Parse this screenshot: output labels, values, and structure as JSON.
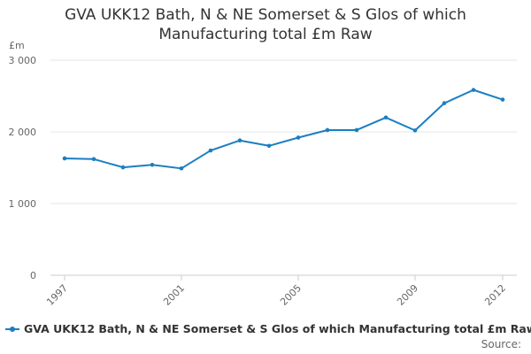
{
  "chart_data": {
    "type": "line",
    "title_line1": "GVA UKK12 Bath, N & NE Somerset & S Glos of which",
    "title_line2": "Manufacturing total £m Raw",
    "ylabel": "£m",
    "ylim": [
      0,
      3000
    ],
    "yticks": [
      0,
      1000,
      2000,
      3000
    ],
    "ytick_labels": [
      "0",
      "1 000",
      "2 000",
      "3 000"
    ],
    "x": [
      1997,
      1998,
      1999,
      2000,
      2001,
      2002,
      2003,
      2004,
      2005,
      2006,
      2007,
      2008,
      2009,
      2010,
      2011,
      2012
    ],
    "xtick_labels": [
      "1997",
      "2001",
      "2005",
      "2009",
      "2012"
    ],
    "xtick_values": [
      1997,
      2001,
      2005,
      2009,
      2012
    ],
    "series": [
      {
        "name": "GVA UKK12 Bath, N & NE Somerset & S Glos of which Manufacturing total £m Raw",
        "color": "#1a7fc1",
        "values": [
          1630,
          1620,
          1505,
          1540,
          1490,
          1740,
          1880,
          1805,
          1920,
          2025,
          2025,
          2200,
          2020,
          2400,
          2585,
          2450
        ]
      }
    ],
    "grid": true,
    "legend_position": "bottom-left",
    "source_label": "Source:"
  }
}
